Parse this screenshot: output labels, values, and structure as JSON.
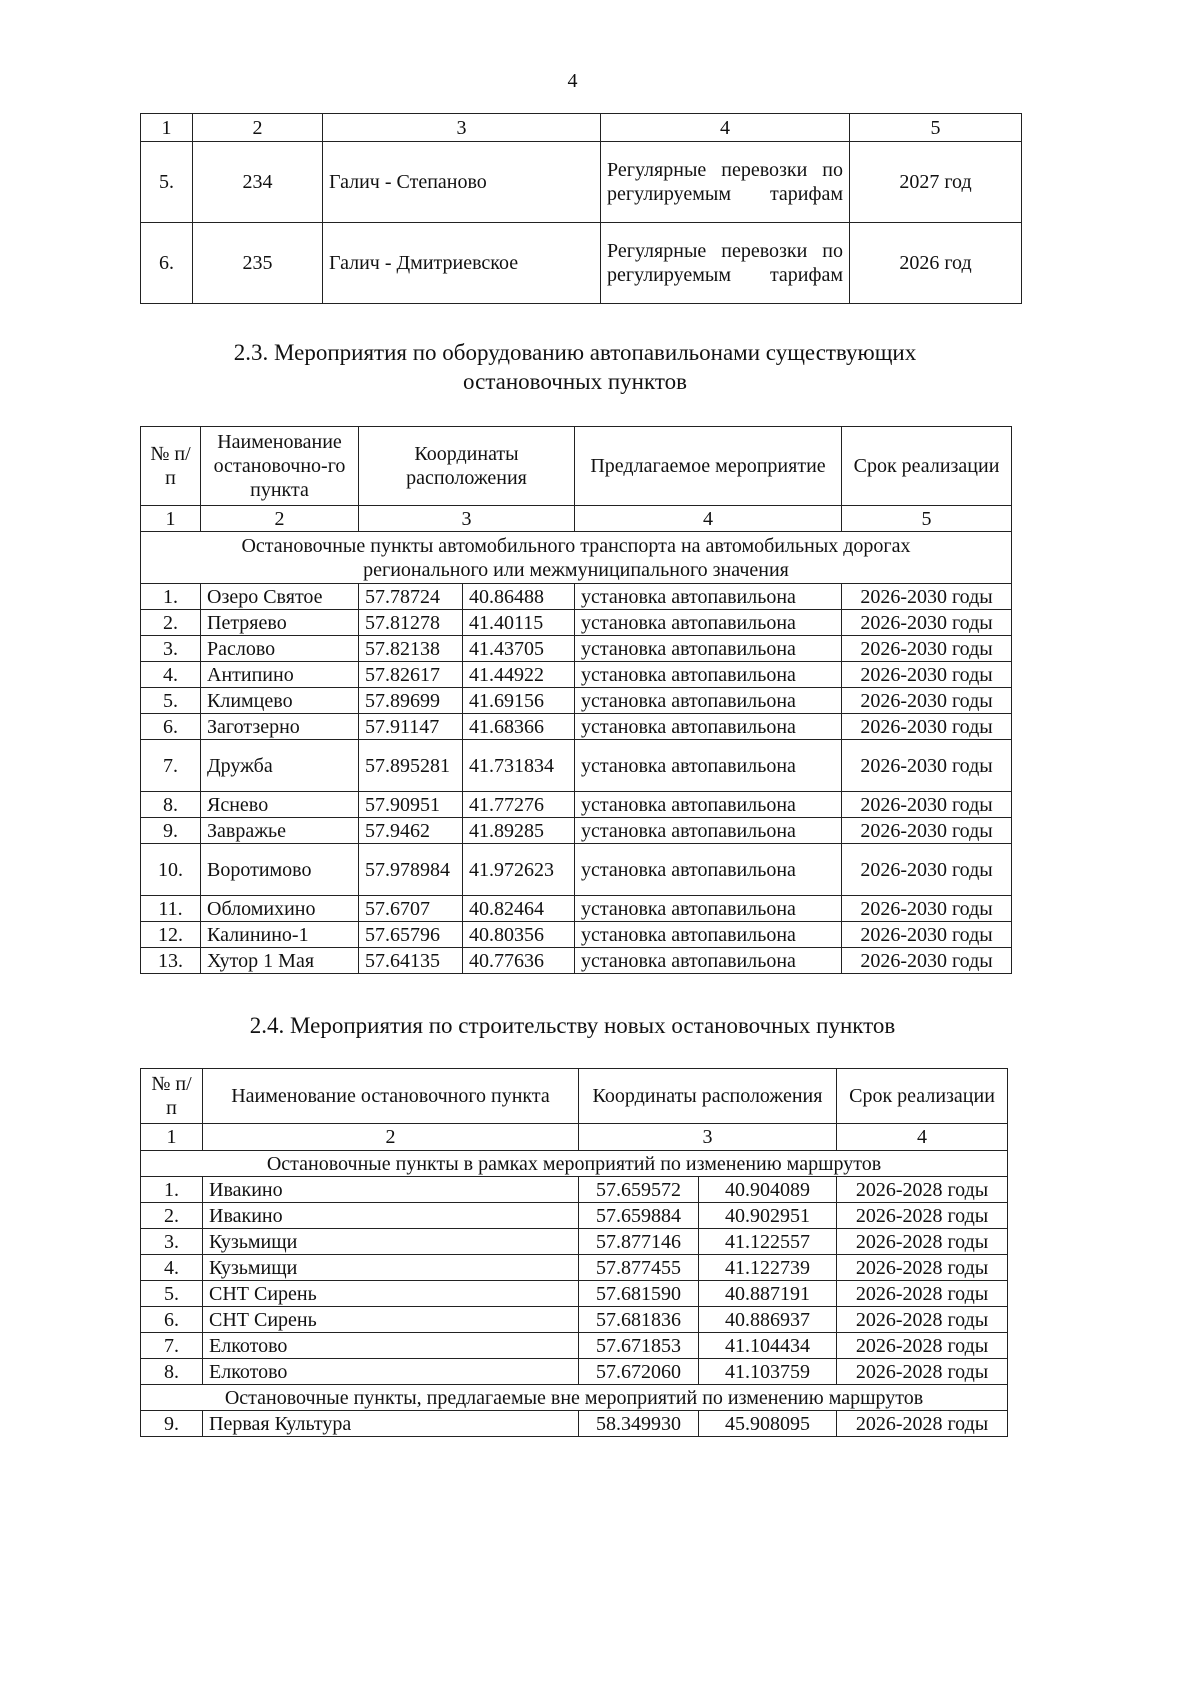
{
  "page_number": "4",
  "table_routes": {
    "col_numbers": [
      "1",
      "2",
      "3",
      "4",
      "5"
    ],
    "rows": [
      {
        "n": "5.",
        "route": "234",
        "name": "Галич - Степаново",
        "type": "Регулярные перевозки по регулируемым тарифам",
        "term": "2027 год"
      },
      {
        "n": "6.",
        "route": "235",
        "name": "Галич - Дмитриевское",
        "type": "Регулярные перевозки по регулируемым тарифам",
        "term": "2026 год"
      }
    ]
  },
  "section_2_3": {
    "title_line1": "2.3. Мероприятия по оборудованию автопавильонами существующих",
    "title_line2": "остановочных пунктов",
    "headers": [
      "№ п/п",
      "Наименование остановочно-го пункта",
      "Координаты расположения",
      "Предлагаемое мероприятие",
      "Срок реализации"
    ],
    "col_numbers": [
      "1",
      "2",
      "3",
      "4",
      "5"
    ],
    "group_label": "Остановочные пункты автомобильного транспорта на автомобильных дорогах регионального или межмуниципального значения",
    "rows": [
      {
        "n": "1.",
        "name": "Озеро Святое",
        "lat": "57.78724",
        "lon": "40.86488",
        "action": "установка автопавильона",
        "term": "2026-2030 годы"
      },
      {
        "n": "2.",
        "name": "Петряево",
        "lat": "57.81278",
        "lon": "41.40115",
        "action": "установка автопавильона",
        "term": "2026-2030 годы"
      },
      {
        "n": "3.",
        "name": "Раслово",
        "lat": "57.82138",
        "lon": "41.43705",
        "action": "установка автопавильона",
        "term": "2026-2030 годы"
      },
      {
        "n": "4.",
        "name": "Антипино",
        "lat": "57.82617",
        "lon": "41.44922",
        "action": "установка автопавильона",
        "term": "2026-2030 годы"
      },
      {
        "n": "5.",
        "name": "Климцево",
        "lat": "57.89699",
        "lon": "41.69156",
        "action": "установка автопавильона",
        "term": "2026-2030 годы"
      },
      {
        "n": "6.",
        "name": "Заготзерно",
        "lat": "57.91147",
        "lon": "41.68366",
        "action": "установка автопавильона",
        "term": "2026-2030 годы"
      },
      {
        "n": "7.",
        "name": "Дружба",
        "lat": "57.895281",
        "lon": "41.731834",
        "action": "установка автопавильона",
        "term": "2026-2030 годы"
      },
      {
        "n": "8.",
        "name": "Ясневo",
        "lat": "57.90951",
        "lon": "41.77276",
        "action": "установка автопавильона",
        "term": "2026-2030 годы"
      },
      {
        "n": "9.",
        "name": "Завражье",
        "lat": "57.9462",
        "lon": "41.89285",
        "action": "установка автопавильона",
        "term": "2026-2030 годы"
      },
      {
        "n": "10.",
        "name": "Воротимово",
        "lat": "57.978984",
        "lon": "41.972623",
        "action": "установка автопавильона",
        "term": "2026-2030 годы"
      },
      {
        "n": "11.",
        "name": "Обломихино",
        "lat": "57.6707",
        "lon": "40.82464",
        "action": "установка автопавильона",
        "term": "2026-2030 годы"
      },
      {
        "n": "12.",
        "name": "Калинино-1",
        "lat": "57.65796",
        "lon": "40.80356",
        "action": "установка автопавильона",
        "term": "2026-2030 годы"
      },
      {
        "n": "13.",
        "name": "Хутор 1 Мая",
        "lat": "57.64135",
        "lon": "40.77636",
        "action": "установка автопавильона",
        "term": "2026-2030 годы"
      }
    ]
  },
  "section_2_4": {
    "title": "2.4. Мероприятия по строительству новых остановочных пунктов",
    "headers": [
      "№ п/п",
      "Наименование остановочного пункта",
      "Координаты расположения",
      "Срок реализации"
    ],
    "col_numbers": [
      "1",
      "2",
      "3",
      "4"
    ],
    "group1_label": "Остановочные пункты в рамках мероприятий по изменению маршрутов",
    "group1_rows": [
      {
        "n": "1.",
        "name": "Ивакино",
        "lat": "57.659572",
        "lon": "40.904089",
        "term": "2026-2028 годы"
      },
      {
        "n": "2.",
        "name": "Ивакино",
        "lat": "57.659884",
        "lon": "40.902951",
        "term": "2026-2028 годы"
      },
      {
        "n": "3.",
        "name": "Кузьмищи",
        "lat": "57.877146",
        "lon": "41.122557",
        "term": "2026-2028 годы"
      },
      {
        "n": "4.",
        "name": "Кузьмищи",
        "lat": "57.877455",
        "lon": "41.122739",
        "term": "2026-2028 годы"
      },
      {
        "n": "5.",
        "name": "СНТ Сирень",
        "lat": "57.681590",
        "lon": "40.887191",
        "term": "2026-2028 годы"
      },
      {
        "n": "6.",
        "name": "СНТ Сирень",
        "lat": "57.681836",
        "lon": "40.886937",
        "term": "2026-2028 годы"
      },
      {
        "n": "7.",
        "name": "Елкотово",
        "lat": "57.671853",
        "lon": "41.104434",
        "term": "2026-2028 годы"
      },
      {
        "n": "8.",
        "name": "Елкотово",
        "lat": "57.672060",
        "lon": "41.103759",
        "term": "2026-2028 годы"
      }
    ],
    "group2_label": "Остановочные пункты, предлагаемые вне мероприятий по изменению маршрутов",
    "group2_rows": [
      {
        "n": "9.",
        "name": "Первая Культура",
        "lat": "58.349930",
        "lon": "45.908095",
        "term": "2026-2028 годы"
      }
    ]
  }
}
